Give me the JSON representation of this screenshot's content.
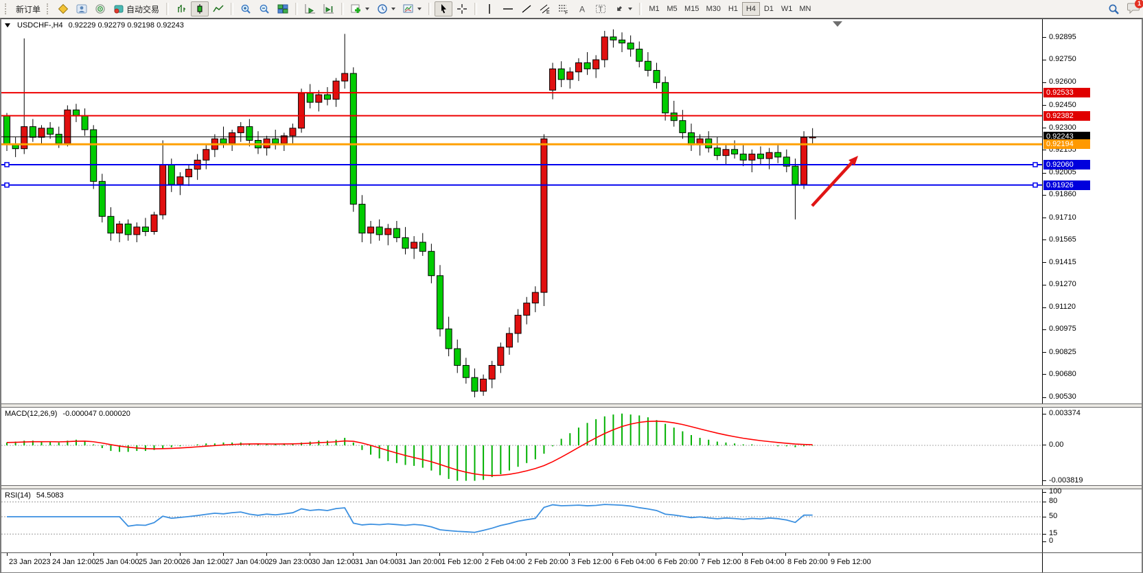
{
  "toolbar": {
    "new_order_label": "新订单",
    "autotrade_label": "自动交易",
    "timeframes": [
      "M1",
      "M5",
      "M15",
      "M30",
      "H1",
      "H4",
      "D1",
      "W1",
      "MN"
    ],
    "active_timeframe": "H4",
    "chat_badge_count": "1"
  },
  "chart_data": [
    {
      "type": "candlestick",
      "title": "USDCHF-,H4",
      "quotes": "0.92229 0.92279 0.92198 0.92243",
      "up_color": "#e01010",
      "down_color": "#00cc00",
      "ylim": [
        0.9053,
        0.93012
      ],
      "yticks": [
        "0.92895",
        "0.92750",
        "0.92600",
        "0.92450",
        "0.92300",
        "0.92155",
        "0.92005",
        "0.91860",
        "0.91710",
        "0.91565",
        "0.91415",
        "0.91270",
        "0.91120",
        "0.90975",
        "0.90825",
        "0.90680",
        "0.90530"
      ],
      "price_badges": [
        {
          "text": "0.92533",
          "color": "#e00000"
        },
        {
          "text": "0.92382",
          "color": "#e00000"
        },
        {
          "text": "0.92243",
          "color": "#000000"
        },
        {
          "text": "0.92194",
          "color": "#ff9900"
        },
        {
          "text": "0.92060",
          "color": "#0000dd"
        },
        {
          "text": "0.91926",
          "color": "#0000dd"
        }
      ],
      "hlines": [
        {
          "value": 0.92533,
          "color": "#ee0000",
          "width": 2,
          "endpoints": false
        },
        {
          "value": 0.92382,
          "color": "#ee0000",
          "width": 2,
          "endpoints": false
        },
        {
          "value": 0.92243,
          "color": "#000000",
          "width": 1,
          "endpoints": false
        },
        {
          "value": 0.92194,
          "color": "#ffa000",
          "width": 3,
          "endpoints": false
        },
        {
          "value": 0.9206,
          "color": "#0000ee",
          "width": 2,
          "endpoints": true
        },
        {
          "value": 0.91926,
          "color": "#0000ee",
          "width": 2,
          "endpoints": true
        }
      ],
      "x_labels": [
        "23 Jan 2023",
        "24 Jan 12:00",
        "25 Jan 04:00",
        "25 Jan 20:00",
        "26 Jan 12:00",
        "27 Jan 04:00",
        "29 Jan 23:00",
        "30 Jan 12:00",
        "31 Jan 04:00",
        "31 Jan 20:00",
        "1 Feb 12:00",
        "2 Feb 04:00",
        "2 Feb 20:00",
        "3 Feb 12:00",
        "6 Feb 04:00",
        "6 Feb 20:00",
        "7 Feb 12:00",
        "8 Feb 04:00",
        "8 Feb 20:00",
        "9 Feb 12:00"
      ],
      "arrow_annotation": {
        "from": [
          1181,
          272
        ],
        "to": [
          1248,
          199
        ],
        "color": "#e01515"
      },
      "ohlc": [
        [
          0.9238,
          0.924,
          0.9215,
          0.92195
        ],
        [
          0.92195,
          0.9224,
          0.9211,
          0.92165
        ],
        [
          0.92165,
          0.9289,
          0.9213,
          0.9231
        ],
        [
          0.9231,
          0.9236,
          0.9221,
          0.9224
        ],
        [
          0.9224,
          0.9232,
          0.9219,
          0.923
        ],
        [
          0.923,
          0.9234,
          0.9223,
          0.9226
        ],
        [
          0.9226,
          0.9231,
          0.9217,
          0.922
        ],
        [
          0.922,
          0.9245,
          0.9218,
          0.9242
        ],
        [
          0.9242,
          0.9246,
          0.9234,
          0.9238
        ],
        [
          0.9238,
          0.9243,
          0.9225,
          0.9229
        ],
        [
          0.9229,
          0.9232,
          0.919,
          0.9195
        ],
        [
          0.9195,
          0.92,
          0.9168,
          0.9172
        ],
        [
          0.9172,
          0.9178,
          0.9156,
          0.9161
        ],
        [
          0.9161,
          0.9169,
          0.9155,
          0.9167
        ],
        [
          0.9167,
          0.917,
          0.9156,
          0.916
        ],
        [
          0.916,
          0.9168,
          0.9155,
          0.9165
        ],
        [
          0.9165,
          0.9171,
          0.9159,
          0.9162
        ],
        [
          0.9162,
          0.9175,
          0.916,
          0.9173
        ],
        [
          0.9173,
          0.9222,
          0.917,
          0.9206
        ],
        [
          0.9206,
          0.921,
          0.9188,
          0.9193
        ],
        [
          0.9193,
          0.9201,
          0.9186,
          0.9198
        ],
        [
          0.9198,
          0.9206,
          0.9192,
          0.9203
        ],
        [
          0.9203,
          0.9213,
          0.9196,
          0.9209
        ],
        [
          0.9209,
          0.9219,
          0.9203,
          0.9216
        ],
        [
          0.9216,
          0.9226,
          0.9211,
          0.9223
        ],
        [
          0.9223,
          0.9231,
          0.9217,
          0.922
        ],
        [
          0.922,
          0.9229,
          0.9215,
          0.9227
        ],
        [
          0.9227,
          0.9234,
          0.9221,
          0.9231
        ],
        [
          0.9231,
          0.9236,
          0.9218,
          0.9222
        ],
        [
          0.9222,
          0.9228,
          0.9213,
          0.9217
        ],
        [
          0.9217,
          0.9225,
          0.9212,
          0.9223
        ],
        [
          0.9223,
          0.9229,
          0.9216,
          0.922
        ],
        [
          0.922,
          0.9227,
          0.9215,
          0.9225
        ],
        [
          0.9225,
          0.9233,
          0.922,
          0.923
        ],
        [
          0.923,
          0.9256,
          0.9227,
          0.9253
        ],
        [
          0.9253,
          0.9259,
          0.9243,
          0.9247
        ],
        [
          0.9247,
          0.9255,
          0.9241,
          0.9252
        ],
        [
          0.9252,
          0.9257,
          0.9245,
          0.9249
        ],
        [
          0.9249,
          0.9263,
          0.9244,
          0.9261
        ],
        [
          0.9261,
          0.9292,
          0.9256,
          0.9266
        ],
        [
          0.9266,
          0.927,
          0.9175,
          0.918
        ],
        [
          0.918,
          0.9186,
          0.9155,
          0.9161
        ],
        [
          0.9161,
          0.9169,
          0.9154,
          0.9165
        ],
        [
          0.9165,
          0.917,
          0.9156,
          0.916
        ],
        [
          0.916,
          0.9167,
          0.9153,
          0.9164
        ],
        [
          0.9164,
          0.9169,
          0.9155,
          0.9158
        ],
        [
          0.9158,
          0.9165,
          0.9147,
          0.9151
        ],
        [
          0.9151,
          0.9159,
          0.9144,
          0.9155
        ],
        [
          0.9155,
          0.9161,
          0.9146,
          0.9149
        ],
        [
          0.9149,
          0.9154,
          0.9128,
          0.9133
        ],
        [
          0.9133,
          0.914,
          0.9093,
          0.9098
        ],
        [
          0.9098,
          0.9106,
          0.908,
          0.9085
        ],
        [
          0.9085,
          0.9091,
          0.9069,
          0.9074
        ],
        [
          0.9074,
          0.9079,
          0.9062,
          0.9066
        ],
        [
          0.9066,
          0.9072,
          0.9053,
          0.9057
        ],
        [
          0.9057,
          0.9068,
          0.9054,
          0.9065
        ],
        [
          0.9065,
          0.9077,
          0.9059,
          0.9074
        ],
        [
          0.9074,
          0.9089,
          0.9069,
          0.9086
        ],
        [
          0.9086,
          0.9099,
          0.9081,
          0.9095
        ],
        [
          0.9095,
          0.9111,
          0.9089,
          0.9107
        ],
        [
          0.9107,
          0.9119,
          0.9101,
          0.9115
        ],
        [
          0.9115,
          0.9126,
          0.9109,
          0.9122
        ],
        [
          0.9122,
          0.9226,
          0.9113,
          0.9223
        ],
        [
          0.9255,
          0.9273,
          0.9249,
          0.9269
        ],
        [
          0.9269,
          0.9274,
          0.9257,
          0.9262
        ],
        [
          0.9262,
          0.927,
          0.9256,
          0.9267
        ],
        [
          0.9267,
          0.9276,
          0.9261,
          0.9273
        ],
        [
          0.9273,
          0.928,
          0.9265,
          0.9269
        ],
        [
          0.9269,
          0.9278,
          0.9263,
          0.9275
        ],
        [
          0.9275,
          0.9294,
          0.927,
          0.929
        ],
        [
          0.929,
          0.9295,
          0.9283,
          0.9288
        ],
        [
          0.9288,
          0.9293,
          0.928,
          0.9286
        ],
        [
          0.9286,
          0.9291,
          0.9277,
          0.9282
        ],
        [
          0.9282,
          0.9287,
          0.927,
          0.9274
        ],
        [
          0.9274,
          0.928,
          0.9264,
          0.9268
        ],
        [
          0.9268,
          0.9273,
          0.9256,
          0.926
        ],
        [
          0.926,
          0.9264,
          0.9235,
          0.924
        ],
        [
          0.924,
          0.9248,
          0.9231,
          0.9235
        ],
        [
          0.9235,
          0.9242,
          0.9223,
          0.9227
        ],
        [
          0.9227,
          0.9233,
          0.9215,
          0.9219
        ],
        [
          0.9219,
          0.9226,
          0.9212,
          0.9223
        ],
        [
          0.9223,
          0.9228,
          0.9214,
          0.9217
        ],
        [
          0.9217,
          0.9224,
          0.9209,
          0.9212
        ],
        [
          0.9212,
          0.922,
          0.9206,
          0.9216
        ],
        [
          0.9216,
          0.9222,
          0.921,
          0.9213
        ],
        [
          0.9213,
          0.9219,
          0.9205,
          0.9209
        ],
        [
          0.9209,
          0.9216,
          0.9201,
          0.9213
        ],
        [
          0.9213,
          0.9218,
          0.9206,
          0.921
        ],
        [
          0.921,
          0.9217,
          0.9203,
          0.9214
        ],
        [
          0.9214,
          0.9219,
          0.9207,
          0.9211
        ],
        [
          0.9211,
          0.9216,
          0.9201,
          0.9205
        ],
        [
          0.9205,
          0.921,
          0.917,
          0.9193
        ],
        [
          0.9193,
          0.9228,
          0.919,
          0.9224
        ],
        [
          0.9224,
          0.923,
          0.9219,
          0.92243
        ]
      ]
    },
    {
      "type": "bar",
      "title": "MACD(12,26,9)",
      "current": "-0.000047 0.000020",
      "bar_color": "#00b000",
      "signal_color": "#ff0000",
      "ylim": [
        -0.0039,
        0.00345
      ],
      "yticks": [
        "0.003374",
        "0.00",
        "-0.003819"
      ],
      "signal": "EMA9 of values",
      "values": [
        0.0003,
        0.0004,
        0.0005,
        0.0005,
        0.0004,
        0.0004,
        0.0003,
        0.0005,
        0.0006,
        0.0005,
        0.0001,
        -0.0003,
        -0.0006,
        -0.0007,
        -0.0007,
        -0.0006,
        -0.0006,
        -0.0005,
        -0.0003,
        -0.0002,
        -0.0001,
        0,
        0.0001,
        0.0002,
        0.0002,
        0.0003,
        0.0003,
        0.0003,
        0.0002,
        0.0002,
        0.0001,
        0.0001,
        0.0002,
        0.0002,
        0.0003,
        0.0004,
        0.0005,
        0.0005,
        0.0006,
        0.0008,
        0.0003,
        -0.0005,
        -0.001,
        -0.0014,
        -0.0017,
        -0.0019,
        -0.0021,
        -0.0022,
        -0.0024,
        -0.0027,
        -0.0032,
        -0.0036,
        -0.0038,
        -0.0038,
        -0.0038,
        -0.0037,
        -0.0034,
        -0.0031,
        -0.0027,
        -0.0023,
        -0.0019,
        -0.0015,
        -0.0009,
        -0.0001,
        0.0007,
        0.0013,
        0.0019,
        0.0024,
        0.0028,
        0.0031,
        0.0033,
        0.0034,
        0.0033,
        0.0032,
        0.003,
        0.0027,
        0.0023,
        0.0019,
        0.0015,
        0.0011,
        0.0008,
        0.0006,
        0.0004,
        0.0003,
        0.0002,
        0.0001,
        0.0001,
        0,
        0,
        -0.0001,
        -0.0001,
        -0.0002,
        -0.0001,
        -5e-05
      ]
    },
    {
      "type": "line",
      "title": "RSI(14)",
      "current": "54.5083",
      "line_color": "#3a8fe0",
      "ylim": [
        0,
        100
      ],
      "yticks": [
        "100",
        "80",
        "50",
        "15",
        "0"
      ],
      "levels": [
        80,
        50,
        15
      ],
      "source": "RSI(14) computed from candlestick closes"
    }
  ]
}
